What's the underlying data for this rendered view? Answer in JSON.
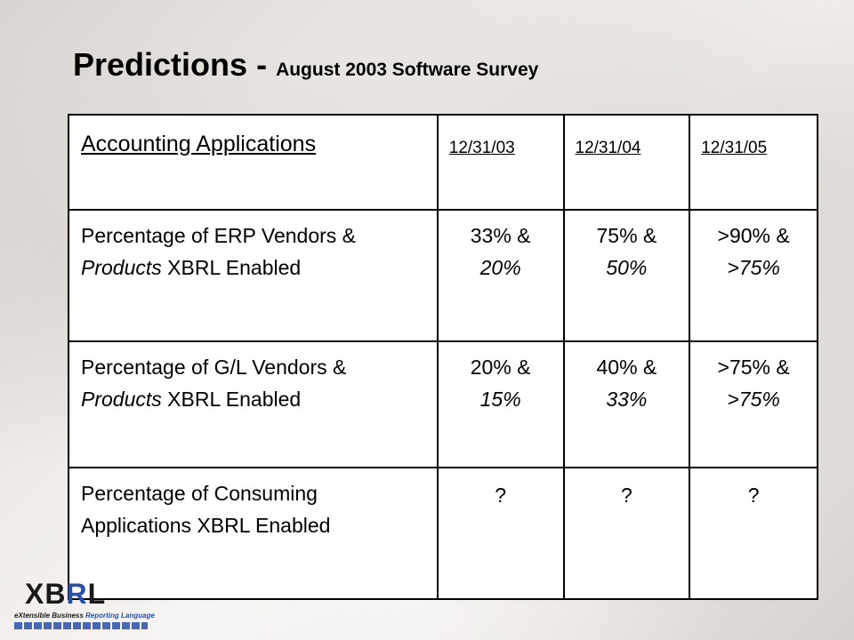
{
  "title": {
    "main": "Predictions",
    "separator": " - ",
    "sub": "August 2003 Software Survey"
  },
  "table": {
    "header": {
      "category": "Accounting Applications",
      "dates": [
        "12/31/03",
        "12/31/04",
        "12/31/05"
      ]
    },
    "rows": [
      {
        "label_parts": [
          "Percentage of ERP Vendors & ",
          "Products",
          " XBRL Enabled"
        ],
        "values": [
          {
            "vendors": "33% &",
            "products": "20%"
          },
          {
            "vendors": "75% &",
            "products": "50%"
          },
          {
            "vendors": ">90% &",
            "products": ">75%"
          }
        ]
      },
      {
        "label_parts": [
          "Percentage of G/L Vendors & ",
          "Products",
          " XBRL Enabled"
        ],
        "values": [
          {
            "vendors": "20% &",
            "products": "15%"
          },
          {
            "vendors": "40% &",
            "products": "33%"
          },
          {
            "vendors": ">75% &",
            "products": ">75%"
          }
        ]
      },
      {
        "label": "Percentage of Consuming Applications XBRL Enabled",
        "values": [
          "?",
          "?",
          "?"
        ]
      }
    ]
  },
  "logo": {
    "text_black": "XB",
    "text_blue": "R",
    "text_black2": "L",
    "tagline_black": "eXtensible Business ",
    "tagline_blue": "Reporting Language"
  }
}
